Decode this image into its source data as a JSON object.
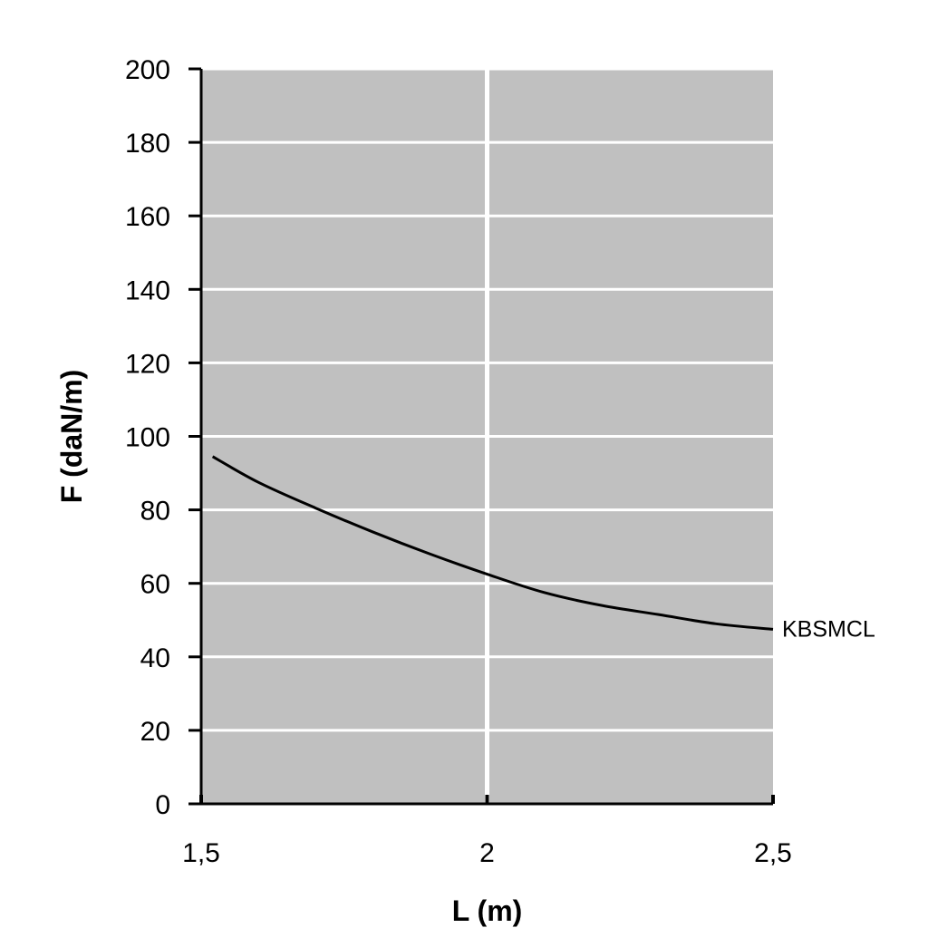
{
  "chart_data": {
    "type": "line",
    "title": "",
    "xlabel": "L (m)",
    "ylabel": "F (daN/m)",
    "xlim": [
      1.5,
      2.5
    ],
    "ylim": [
      0,
      200
    ],
    "x_ticks": [
      1.5,
      2,
      2.5
    ],
    "x_tick_labels": [
      "1,5",
      "2",
      "2,5"
    ],
    "y_ticks": [
      0,
      20,
      40,
      60,
      80,
      100,
      120,
      140,
      160,
      180,
      200
    ],
    "y_tick_labels": [
      "0",
      "20",
      "40",
      "60",
      "80",
      "100",
      "120",
      "140",
      "160",
      "180",
      "200"
    ],
    "grid": true,
    "colors": {
      "plot_background": "#c0c0c0",
      "grid": "#ffffff",
      "line": "#000000"
    },
    "series": [
      {
        "name": "KBSMCL",
        "x": [
          1.52,
          1.6,
          1.7,
          1.8,
          1.9,
          2.0,
          2.1,
          2.2,
          2.3,
          2.4,
          2.5
        ],
        "y": [
          94.5,
          87.5,
          80.5,
          74,
          68,
          62.5,
          57.5,
          54,
          51.5,
          49,
          47.5
        ]
      }
    ]
  }
}
